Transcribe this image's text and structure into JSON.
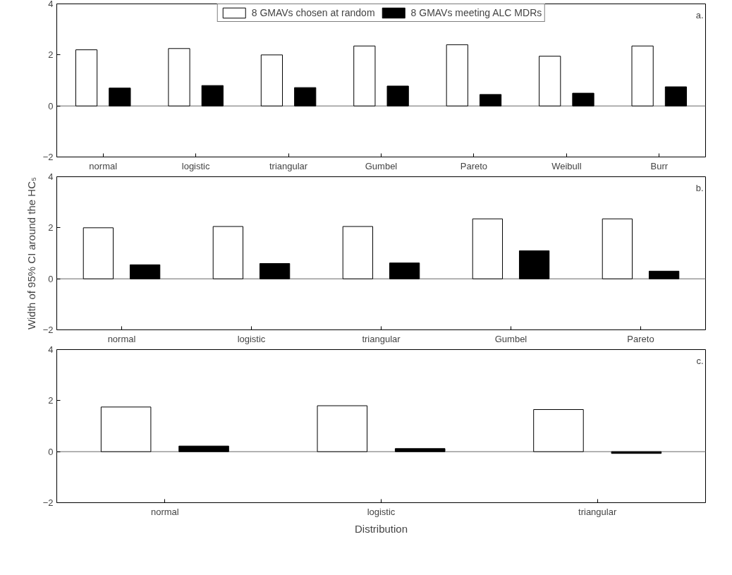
{
  "chart_data": [
    {
      "type": "bar",
      "categories": [
        "normal",
        "logistic",
        "triangular",
        "Gumbel",
        "Pareto",
        "Weibull",
        "Burr"
      ],
      "ylim": [
        -2,
        4
      ],
      "yticks": [
        -2,
        0,
        2,
        4
      ],
      "legend": "top",
      "annotations": [
        "a."
      ],
      "ref_lines": [
        {
          "axis": "y",
          "value": 0,
          "color": "#999999"
        }
      ],
      "series": [
        {
          "name": "8 GMAVs chosen at random",
          "color": "#ffffff",
          "values": [
            2.2,
            2.25,
            2.0,
            2.35,
            2.4,
            1.95,
            2.35
          ]
        },
        {
          "name": "8 GMAVs meeting ALC MDRs",
          "color": "#000000",
          "values": [
            0.7,
            0.8,
            0.72,
            0.78,
            0.45,
            0.5,
            0.75
          ]
        }
      ]
    },
    {
      "type": "bar",
      "categories": [
        "normal",
        "logistic",
        "triangular",
        "Gumbel",
        "Pareto"
      ],
      "ylim": [
        -2,
        4
      ],
      "yticks": [
        -2,
        0,
        2,
        4
      ],
      "ylabel": "Width of 95% CI around the HC₅",
      "annotations": [
        "b."
      ],
      "ref_lines": [
        {
          "axis": "y",
          "value": 0,
          "color": "#999999"
        }
      ],
      "series": [
        {
          "color": "#ffffff",
          "values": [
            2.0,
            2.05,
            2.05,
            2.35,
            2.35
          ]
        },
        {
          "color": "#000000",
          "values": [
            0.55,
            0.6,
            0.62,
            1.1,
            0.3
          ]
        }
      ]
    },
    {
      "type": "bar",
      "categories": [
        "normal",
        "logistic",
        "triangular"
      ],
      "ylim": [
        -2,
        4
      ],
      "yticks": [
        -2,
        0,
        2,
        4
      ],
      "xlabel": "Distribution",
      "annotations": [
        "c."
      ],
      "ref_lines": [
        {
          "axis": "y",
          "value": 0,
          "color": "#999999"
        }
      ],
      "series": [
        {
          "color": "#ffffff",
          "values": [
            1.75,
            1.8,
            1.65
          ]
        },
        {
          "color": "#000000",
          "values": [
            0.22,
            0.12,
            -0.07
          ]
        }
      ]
    }
  ]
}
